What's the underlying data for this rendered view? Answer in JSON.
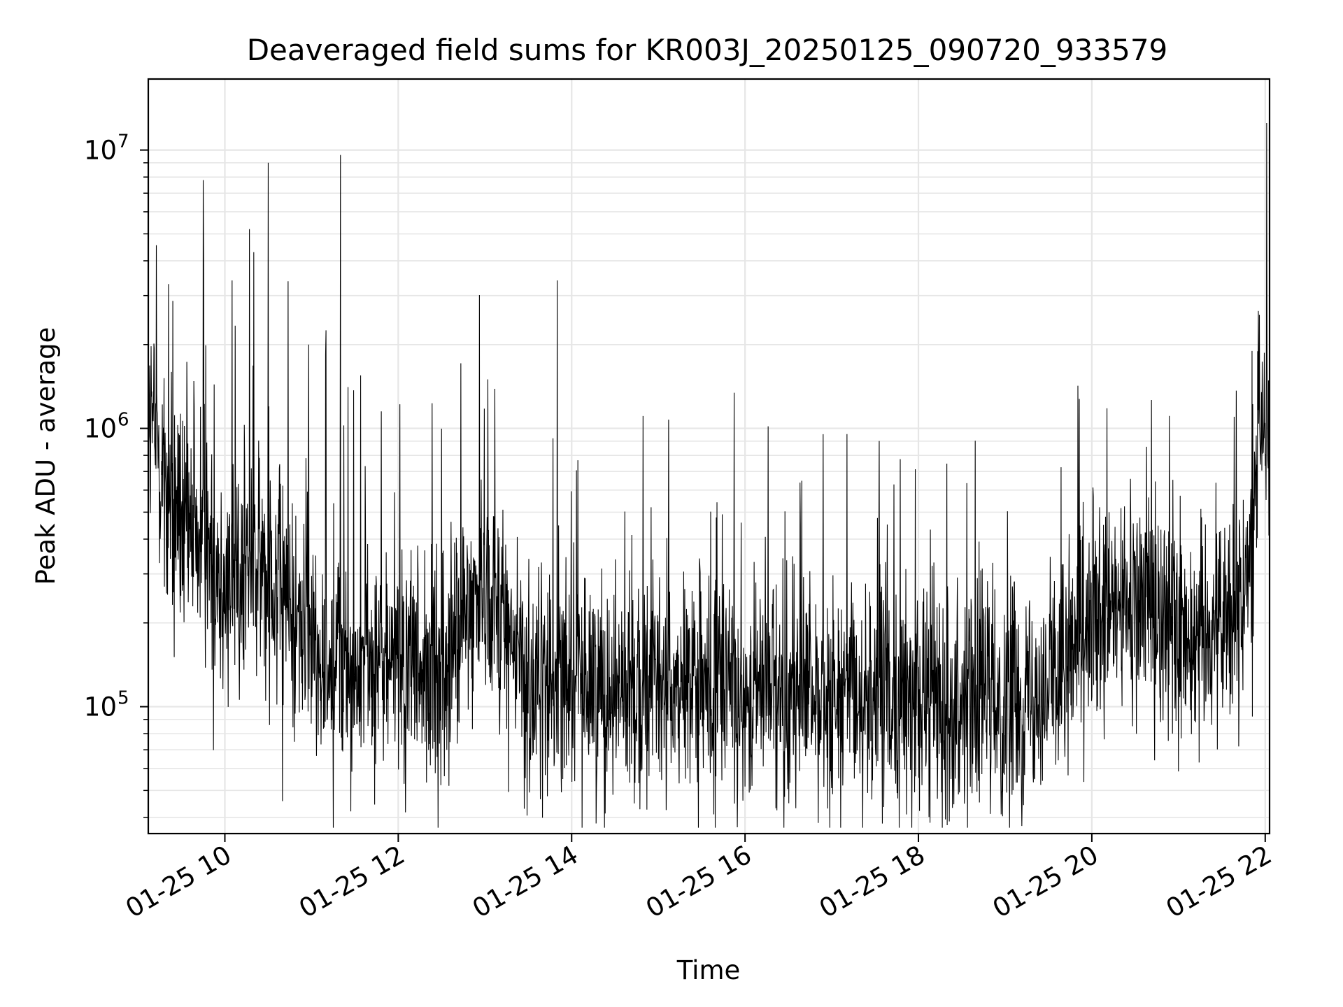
{
  "chart_data": {
    "type": "line",
    "title": "Deaveraged field sums for KR003J_20250125_090720_933579",
    "xlabel": "Time",
    "ylabel": "Peak ADU - average",
    "yscale": "log",
    "grid": true,
    "ylim": [
      35000,
      18000000
    ],
    "xlim": [
      "2025-01-25 09:07",
      "2025-01-25 22:03"
    ],
    "x_ticks": [
      {
        "value": "2025-01-25 10:00",
        "label": "01-25 10"
      },
      {
        "value": "2025-01-25 12:00",
        "label": "01-25 12"
      },
      {
        "value": "2025-01-25 14:00",
        "label": "01-25 14"
      },
      {
        "value": "2025-01-25 16:00",
        "label": "01-25 16"
      },
      {
        "value": "2025-01-25 18:00",
        "label": "01-25 18"
      },
      {
        "value": "2025-01-25 20:00",
        "label": "01-25 20"
      },
      {
        "value": "2025-01-25 22:00",
        "label": "01-25 22"
      }
    ],
    "y_ticks": [
      {
        "value": 100000,
        "base": "10",
        "exp": "5"
      },
      {
        "value": 1000000,
        "base": "10",
        "exp": "6"
      },
      {
        "value": 10000000,
        "base": "10",
        "exp": "7"
      }
    ],
    "line_color": "#000000",
    "envelope": {
      "times": [
        "2025-01-25 09:07",
        "2025-01-25 09:30",
        "2025-01-25 10:00",
        "2025-01-25 10:30",
        "2025-01-25 11:00",
        "2025-01-25 11:30",
        "2025-01-25 12:00",
        "2025-01-25 12:30",
        "2025-01-25 13:00",
        "2025-01-25 13:30",
        "2025-01-25 14:00",
        "2025-01-25 15:00",
        "2025-01-25 16:00",
        "2025-01-25 17:00",
        "2025-01-25 18:00",
        "2025-01-25 19:00",
        "2025-01-25 19:30",
        "2025-01-25 20:00",
        "2025-01-25 20:30",
        "2025-01-25 21:00",
        "2025-01-25 21:30",
        "2025-01-25 21:50",
        "2025-01-25 21:56",
        "2025-01-25 22:03"
      ],
      "median": [
        1100000,
        450000,
        300000,
        320000,
        160000,
        140000,
        140000,
        130000,
        300000,
        120000,
        130000,
        120000,
        115000,
        110000,
        108000,
        110000,
        120000,
        180000,
        250000,
        200000,
        200000,
        300000,
        1300000,
        1000000
      ]
    },
    "spikes": [
      {
        "time": "2025-01-25 09:45",
        "value": 7800000
      },
      {
        "time": "2025-01-25 10:30",
        "value": 9000000
      },
      {
        "time": "2025-01-25 11:20",
        "value": 9600000
      },
      {
        "time": "2025-01-25 10:17",
        "value": 5200000
      },
      {
        "time": "2025-01-25 10:20",
        "value": 4300000
      },
      {
        "time": "2025-01-25 10:05",
        "value": 3400000
      },
      {
        "time": "2025-01-25 09:21",
        "value": 3300000
      },
      {
        "time": "2025-01-25 13:50",
        "value": 3400000
      },
      {
        "time": "2025-01-25 13:02",
        "value": 1500000
      },
      {
        "time": "2025-01-25 22:01",
        "value": 12500000
      },
      {
        "time": "2025-01-25 11:10",
        "value": 2250000
      },
      {
        "time": "2025-01-25 10:58",
        "value": 2000000
      }
    ]
  }
}
